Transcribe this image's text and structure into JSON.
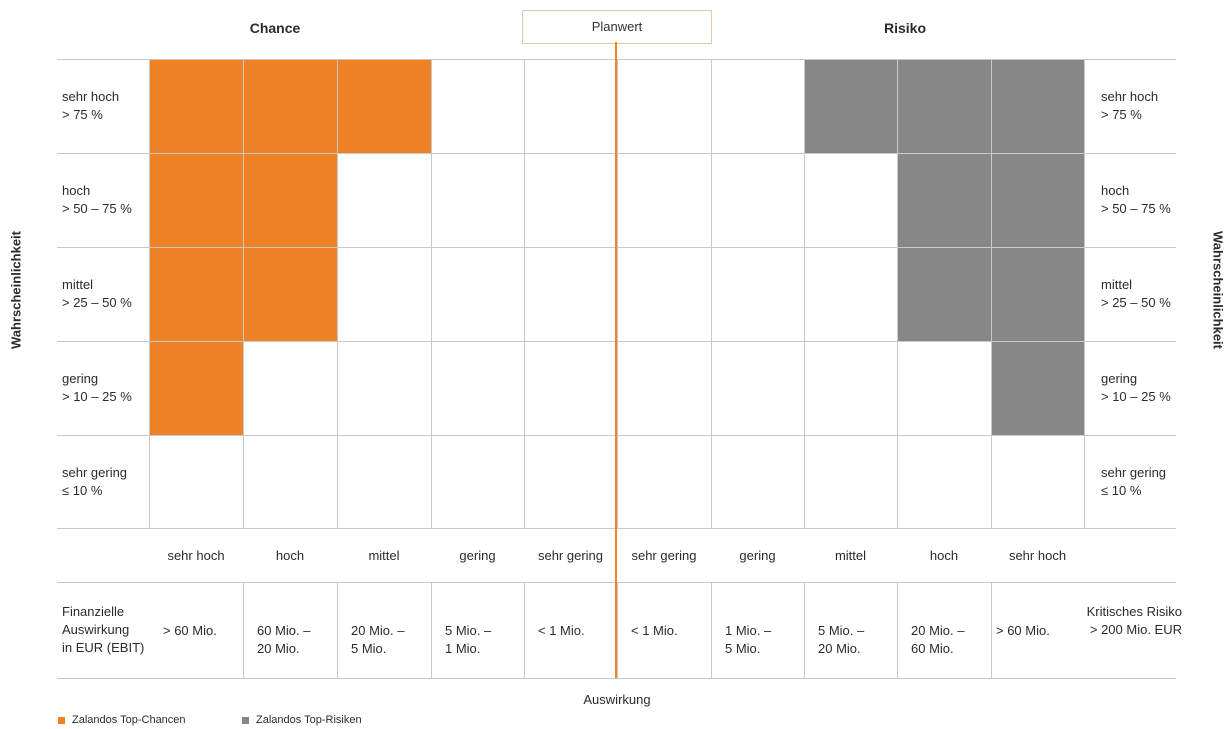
{
  "header": {
    "chance": "Chance",
    "planwert": "Planwert",
    "risiko": "Risiko"
  },
  "axis": {
    "y_title": "Wahrscheinlichkeit",
    "x_title": "Auswirkung"
  },
  "probability_rows": [
    {
      "name": "sehr hoch",
      "range": "> 75 %"
    },
    {
      "name": "hoch",
      "range": "> 50 – 75 %"
    },
    {
      "name": "mittel",
      "range": "> 25 – 50 %"
    },
    {
      "name": "gering",
      "range": "> 10 – 25 %"
    },
    {
      "name": "sehr gering",
      "range": "≤ 10 %"
    }
  ],
  "impact_columns": [
    "sehr hoch",
    "hoch",
    "mittel",
    "gering",
    "sehr gering",
    "sehr gering",
    "gering",
    "mittel",
    "hoch",
    "sehr hoch"
  ],
  "financial": {
    "label": [
      "Finanzielle",
      "Auswirkung",
      "in EUR (EBIT)"
    ],
    "amounts": [
      [
        "> 60 Mio."
      ],
      [
        "60 Mio. –",
        "20 Mio."
      ],
      [
        "20 Mio. –",
        "5 Mio."
      ],
      [
        "5 Mio. –",
        "1 Mio."
      ],
      [
        "< 1 Mio."
      ],
      [
        "< 1 Mio."
      ],
      [
        "1 Mio. –",
        "5 Mio."
      ],
      [
        "5 Mio. –",
        "20 Mio."
      ],
      [
        "20 Mio. –",
        "60 Mio."
      ],
      [
        "> 60 Mio."
      ]
    ],
    "critical": [
      "Kritisches Risiko",
      "> 200 Mio. EUR"
    ]
  },
  "matrix": {
    "chance_cells": [
      [
        0,
        0
      ],
      [
        0,
        1
      ],
      [
        0,
        2
      ],
      [
        1,
        0
      ],
      [
        1,
        1
      ],
      [
        2,
        0
      ],
      [
        2,
        1
      ],
      [
        3,
        0
      ]
    ],
    "risk_cells": [
      [
        0,
        7
      ],
      [
        0,
        8
      ],
      [
        0,
        9
      ],
      [
        1,
        8
      ],
      [
        1,
        9
      ],
      [
        2,
        8
      ],
      [
        2,
        9
      ],
      [
        3,
        9
      ]
    ]
  },
  "legend": {
    "chance": "Zalandos Top-Chancen",
    "risk": "Zalandos Top-Risiken"
  },
  "colors": {
    "chance": "#ef8225",
    "risk": "#878787",
    "grid": "#c9c9c9"
  }
}
